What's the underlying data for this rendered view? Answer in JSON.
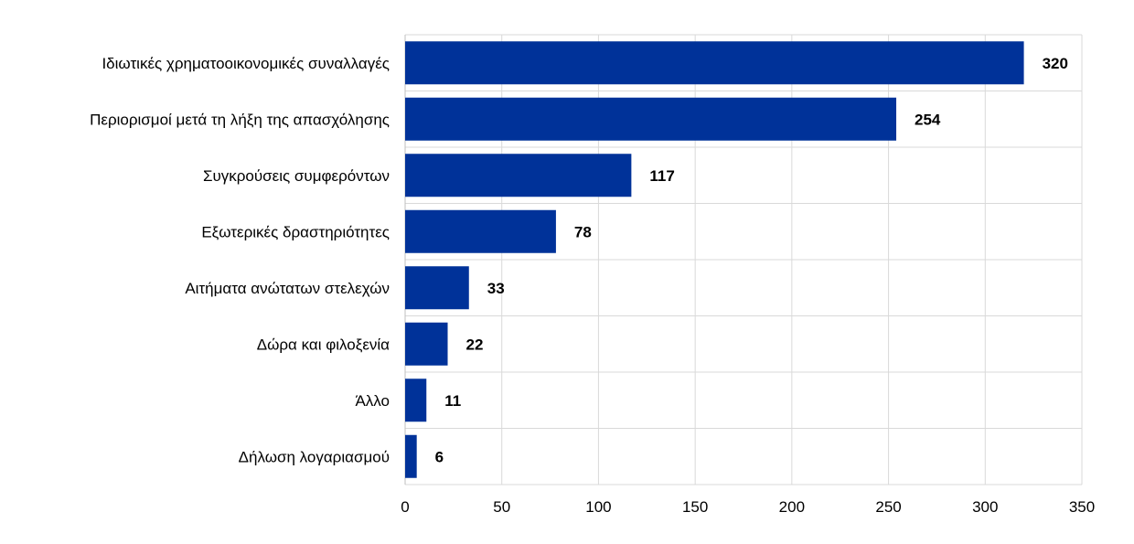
{
  "chart_data": {
    "type": "bar",
    "orientation": "horizontal",
    "title": "",
    "xlabel": "",
    "ylabel": "",
    "categories": [
      "Ιδιωτικές χρηματοοικονομικές συναλλαγές",
      "Περιορισμοί μετά τη λήξη της απασχόλησης",
      "Συγκρούσεις συμφερόντων",
      "Εξωτερικές δραστηριότητες",
      "Αιτήματα ανώτατων στελεχών",
      "Δώρα και φιλοξενία",
      "Άλλο",
      "Δήλωση λογαριασμού"
    ],
    "values": [
      320,
      254,
      117,
      78,
      33,
      22,
      11,
      6
    ],
    "xlim": [
      0,
      350
    ],
    "xticks": [
      "0",
      "50",
      "100",
      "150",
      "200",
      "250",
      "300",
      "350"
    ],
    "grid": true,
    "bar_color": "#003299",
    "grid_color": "#d9d9d9"
  }
}
